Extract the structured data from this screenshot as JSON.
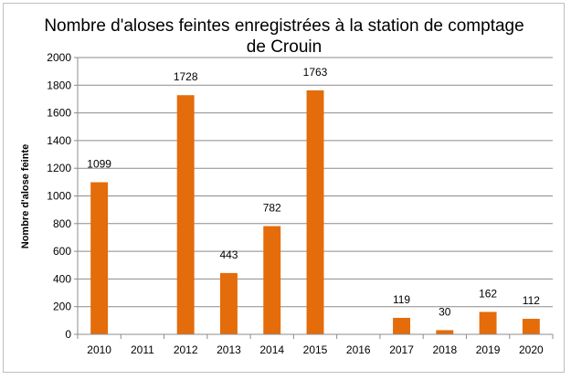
{
  "chart_data": {
    "type": "bar",
    "title": "Nombre d'aloses feintes enregistrées à la station de comptage de Crouin",
    "title_lines": [
      "Nombre d'aloses feintes enregistrées à la station de comptage",
      "de Crouin"
    ],
    "xlabel": "",
    "ylabel": "Nombre d'alose feinte",
    "categories": [
      "2010",
      "2011",
      "2012",
      "2013",
      "2014",
      "2015",
      "2016",
      "2017",
      "2018",
      "2019",
      "2020"
    ],
    "values": [
      1099,
      null,
      1728,
      443,
      782,
      1763,
      null,
      119,
      30,
      162,
      112
    ],
    "data_labels": [
      "1099",
      "",
      "1728",
      "443",
      "782",
      "1763",
      "",
      "119",
      "30",
      "162",
      "112"
    ],
    "ylim": [
      0,
      2000
    ],
    "yticks": [
      0,
      200,
      400,
      600,
      800,
      1000,
      1200,
      1400,
      1600,
      1800,
      2000
    ],
    "grid": true,
    "legend": "none",
    "bar_color": "#E46C0A"
  }
}
